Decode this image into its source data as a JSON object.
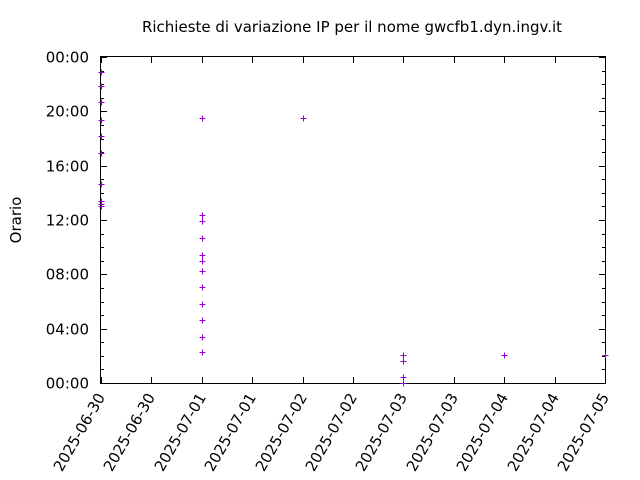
{
  "chart_data": {
    "type": "scatter",
    "title": "Richieste di variazione IP per il nome gwcfb1.dyn.ingv.it",
    "ylabel": "Orario",
    "xlabel": "",
    "x_range": [
      "2025-06-30 00:00",
      "2025-07-05 00:00"
    ],
    "y_range_hours": [
      0,
      24
    ],
    "x_ticks": [
      {
        "at": "2025-06-30 00:00",
        "label": "2025-06-30"
      },
      {
        "at": "2025-06-30 12:00",
        "label": "2025-06-30"
      },
      {
        "at": "2025-07-01 00:00",
        "label": "2025-07-01"
      },
      {
        "at": "2025-07-01 12:00",
        "label": "2025-07-01"
      },
      {
        "at": "2025-07-02 00:00",
        "label": "2025-07-02"
      },
      {
        "at": "2025-07-02 12:00",
        "label": "2025-07-02"
      },
      {
        "at": "2025-07-03 00:00",
        "label": "2025-07-03"
      },
      {
        "at": "2025-07-03 12:00",
        "label": "2025-07-03"
      },
      {
        "at": "2025-07-04 00:00",
        "label": "2025-07-04"
      },
      {
        "at": "2025-07-04 12:00",
        "label": "2025-07-04"
      },
      {
        "at": "2025-07-05 00:00",
        "label": "2025-07-05"
      }
    ],
    "y_ticks": [
      {
        "hours": 0,
        "label": "00:00"
      },
      {
        "hours": 4,
        "label": "04:00"
      },
      {
        "hours": 8,
        "label": "08:00"
      },
      {
        "hours": 12,
        "label": "12:00"
      },
      {
        "hours": 16,
        "label": "16:00"
      },
      {
        "hours": 20,
        "label": "20:00"
      },
      {
        "hours": 24,
        "label": "00:00"
      }
    ],
    "grid": false,
    "marker": "+",
    "color": "#9400d3",
    "points": [
      {
        "x": "2025-06-30 00:00",
        "y": "13:00"
      },
      {
        "x": "2025-06-30 00:00",
        "y": "13:10"
      },
      {
        "x": "2025-06-30 00:00",
        "y": "13:25"
      },
      {
        "x": "2025-06-30 00:00",
        "y": "14:40"
      },
      {
        "x": "2025-06-30 00:00",
        "y": "16:55"
      },
      {
        "x": "2025-06-30 00:00",
        "y": "18:10"
      },
      {
        "x": "2025-06-30 00:00",
        "y": "19:20"
      },
      {
        "x": "2025-06-30 00:00",
        "y": "20:40"
      },
      {
        "x": "2025-06-30 00:00",
        "y": "21:50"
      },
      {
        "x": "2025-06-30 00:00",
        "y": "22:55"
      },
      {
        "x": "2025-07-01 00:00",
        "y": "02:15"
      },
      {
        "x": "2025-07-01 00:00",
        "y": "03:25"
      },
      {
        "x": "2025-07-01 00:00",
        "y": "04:40"
      },
      {
        "x": "2025-07-01 00:00",
        "y": "05:50"
      },
      {
        "x": "2025-07-01 00:00",
        "y": "07:05"
      },
      {
        "x": "2025-07-01 00:00",
        "y": "08:15"
      },
      {
        "x": "2025-07-01 00:00",
        "y": "09:00"
      },
      {
        "x": "2025-07-01 00:00",
        "y": "09:25"
      },
      {
        "x": "2025-07-01 00:00",
        "y": "10:40"
      },
      {
        "x": "2025-07-01 00:00",
        "y": "11:55"
      },
      {
        "x": "2025-07-01 00:00",
        "y": "12:20"
      },
      {
        "x": "2025-07-01 00:00",
        "y": "19:30"
      },
      {
        "x": "2025-07-02 00:00",
        "y": "19:30"
      },
      {
        "x": "2025-07-03 00:00",
        "y": "00:00"
      },
      {
        "x": "2025-07-03 00:00",
        "y": "00:25"
      },
      {
        "x": "2025-07-03 00:00",
        "y": "01:35"
      },
      {
        "x": "2025-07-03 00:00",
        "y": "02:05"
      },
      {
        "x": "2025-07-04 00:00",
        "y": "02:05"
      },
      {
        "x": "2025-07-05 00:00",
        "y": "02:05"
      }
    ]
  }
}
